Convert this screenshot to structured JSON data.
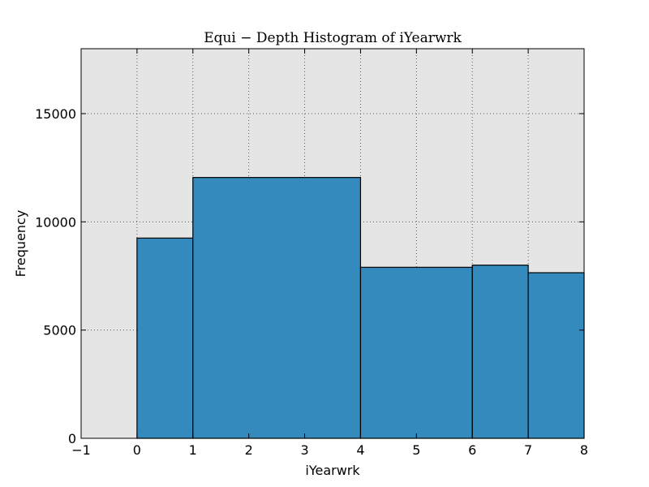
{
  "chart_data": {
    "type": "bar",
    "title": "Equi − Depth Histogram of iYearwrk",
    "xlabel": "iYearwrk",
    "ylabel": "Frequency",
    "xlim": [
      -1,
      8
    ],
    "ylim": [
      0,
      18000
    ],
    "grid": true,
    "bins": [
      {
        "x0": 0,
        "x1": 1,
        "value": 9250
      },
      {
        "x0": 1,
        "x1": 4,
        "value": 12050
      },
      {
        "x0": 4,
        "x1": 6,
        "value": 7900
      },
      {
        "x0": 6,
        "x1": 7,
        "value": 8000
      },
      {
        "x0": 7,
        "x1": 8,
        "value": 7650
      }
    ],
    "xticks": [
      -1,
      0,
      1,
      2,
      3,
      4,
      5,
      6,
      7,
      8
    ],
    "xtick_labels": [
      "−1",
      "0",
      "1",
      "2",
      "3",
      "4",
      "5",
      "6",
      "7",
      "8"
    ],
    "yticks": [
      0,
      5000,
      10000,
      15000
    ],
    "ytick_labels": [
      "0",
      "5000",
      "10000",
      "15000"
    ],
    "colors": {
      "bar_fill": "#348abd",
      "bar_edge": "#000000",
      "plot_background": "#e5e5e5",
      "grid": "#555555"
    }
  }
}
